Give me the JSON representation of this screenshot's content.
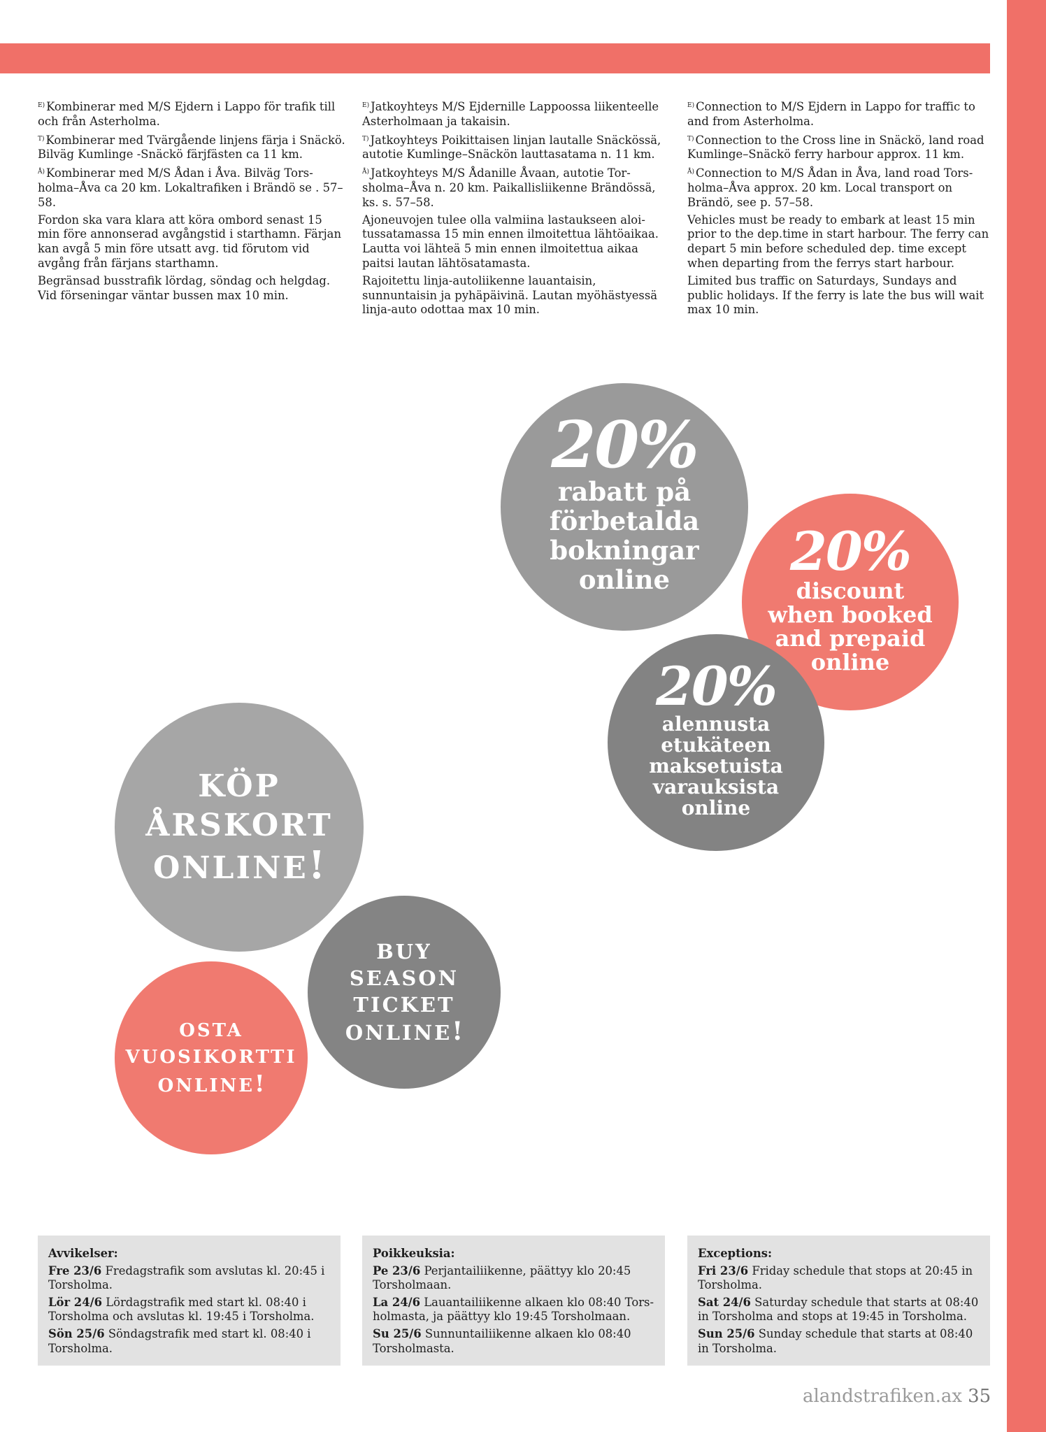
{
  "colors": {
    "accent": "#f07068",
    "circle_gray_light": "#a6a6a6",
    "circle_gray_mid": "#9a9a9a",
    "circle_gray_dark": "#838383",
    "circle_coral": "#f07a70",
    "box_bg": "#e2e2e2"
  },
  "columns": {
    "sv": {
      "e_mark": "E)",
      "e_text": "Kombinerar med M/S Ejdern i Lappo för trafik till och från Asterholma.",
      "t_mark": "T)",
      "t_text": "Kombinerar med Tvärgående linjens färja i Snäckö. Bilväg Kumlinge -Snäckö färjfästen ca 11 km.",
      "a_mark": "Å)",
      "a_text": "Kombinerar med M/S Ådan i Åva. Bilväg Tors­holma–Åva ca 20 km. Lokaltrafiken i Brändö se . 57–58.",
      "p1": "Fordon ska vara klara att köra ombord senast 15 min före annonserad avgångstid i starthamn. Färjan kan avgå 5 min före utsatt avg. tid förutom vid avgång från färjans starthamn.",
      "p2": "Begränsad busstrafik lördag, söndag och helgdag. Vid förseningar väntar bussen max 10 min."
    },
    "fi": {
      "e_mark": "E)",
      "e_text": "Jatkoyhteys M/S Ejdernille Lappoossa liikenteelle Asterholmaan ja takaisin.",
      "t_mark": "T)",
      "t_text": "Jatkoyhteys Poikittaisen linjan lautalle Snäckössä, autotie Kumlinge–Snäckön lauttasatama n. 11 km.",
      "a_mark": "Å)",
      "a_text": "Jatkoyhteys M/S Ådanille Åvaan, autotie Tor­sholma–Åva n. 20 km. Paikallisliikenne Brändössä, ks. s. 57–58.",
      "p1": "Ajoneuvojen tulee olla valmiina lastaukseen aloi­tussatamassa 15 min ennen ilmoitettua lähtöaikaa. Lautta voi lähteä 5 min ennen ilmoitettua aikaa paitsi lautan lähtösatamasta.",
      "p2": "Rajoitettu linja-autoliikenne lauantaisin, sunnuntaisin ja pyhäpäivinä. Lautan myöhästyessä linja-auto odottaa max 10 min."
    },
    "en": {
      "e_mark": "E)",
      "e_text": "Connection to M/S Ejdern in Lappo for traffic to and from Asterholma.",
      "t_mark": "T)",
      "t_text": "Connection to the Cross line in Snäckö, land road Kumlinge–Snäckö ferry harbour approx. 11 km.",
      "a_mark": "Å)",
      "a_text": "Connection to M/S Ådan in Åva, land road Tors­holma–Åva approx. 20 km. Local transport on Brändö, see p. 57–58.",
      "p1": "Vehicles must be ready to embark at least 15 min prior to the dep.time in start harbour. The ferry can depart 5 min before scheduled dep. time except when departing from the ferrys start harbour.",
      "p2": "Limited bus traffic on Saturdays, Sundays and public holidays. If the ferry is late the bus will wait max 10 min."
    }
  },
  "circles": {
    "rabatt": {
      "percent": "20%",
      "lines": [
        "rabatt på",
        "förbetalda",
        "bokningar",
        "online"
      ]
    },
    "discount": {
      "percent": "20%",
      "lines": [
        "discount",
        "when booked",
        "and prepaid",
        "online"
      ]
    },
    "alennusta": {
      "percent": "20%",
      "lines": [
        "alennusta",
        "etukäteen",
        "maksetuista",
        "varauksista",
        "online"
      ]
    },
    "kop": {
      "lines": [
        "KÖP",
        "ÅRSKORT",
        "ONLINE"
      ],
      "excl": "!"
    },
    "buy": {
      "lines": [
        "BUY",
        "SEASON",
        "TICKET",
        "ONLINE"
      ],
      "excl": "!"
    },
    "osta": {
      "lines": [
        "OSTA",
        "VUOSIKORTTI",
        "ONLINE"
      ],
      "excl": "!"
    }
  },
  "boxes": {
    "sv": {
      "heading": "Avvikelser:",
      "rows": [
        {
          "day": "Fre 23/6",
          "text": "Fredagstrafik som avslutas kl. 20:45 i Torsholma."
        },
        {
          "day": "Lör 24/6",
          "text": "Lördagstrafik med start kl. 08:40 i Tors­holma och avslutas kl. 19:45 i Torsholma."
        },
        {
          "day": "Sön 25/6",
          "text": "Söndagstrafik med start kl. 08:40 i Torsholma."
        }
      ]
    },
    "fi": {
      "heading": "Poikkeuksia:",
      "rows": [
        {
          "day": "Pe 23/6",
          "text": "Perjantailiikenne, päättyy klo 20:45 Torsholmaan."
        },
        {
          "day": "La 24/6",
          "text": "Lauantailiikenne alkaen klo 08:40 Tors­holmasta, ja päättyy klo 19:45 Torsholmaan."
        },
        {
          "day": "Su 25/6",
          "text": "Sunnuntailiikenne alkaen klo 08:40 Torsholmasta."
        }
      ]
    },
    "en": {
      "heading": "Exceptions:",
      "rows": [
        {
          "day": "Fri 23/6",
          "text": "Friday schedule that stops at 20:45 in Torsholma."
        },
        {
          "day": "Sat 24/6",
          "text": "Saturday schedule that starts at 08:40 in Torsholma and stops at 19:45 in Torsholma."
        },
        {
          "day": "Sun 25/6",
          "text": "Sunday schedule that starts at 08:40 in Torsholma."
        }
      ]
    }
  },
  "footer": {
    "site": "alandstrafiken.ax",
    "page": "35"
  }
}
